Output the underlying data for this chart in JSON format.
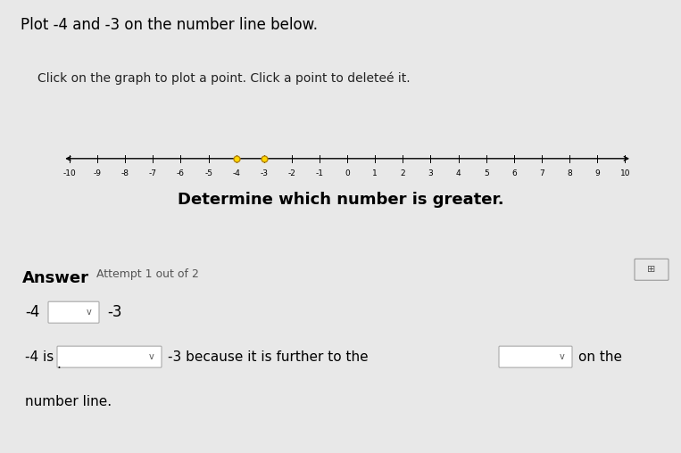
{
  "title": "Plot -4 and -3 on the number line below.",
  "subtitle": "Click on the graph to plot a point. Click a point to deleteé it.",
  "determine_text": "Determine which number is greater.",
  "answer_label": "Answer",
  "attempt_text": "Attempt 1 out of 2",
  "number_line_min": -10,
  "number_line_max": 10,
  "points": [
    -4,
    -3
  ],
  "point_fill_color": "#FFD700",
  "point_edge_color": "#B8860B",
  "point_size": 5,
  "line_color": "#000000",
  "background_top": "#e8e8e8",
  "background_bottom": "#d4d4d4",
  "answer_line1_left": "-4",
  "answer_line1_right": "-3",
  "answer_line2_left": "-4 is",
  "answer_line2_mid": "-3 because it is further to the",
  "answer_line2_right": "on the",
  "answer_line3": "number line.",
  "font_size_title": 12,
  "font_size_subtitle": 10,
  "font_size_determine": 13,
  "font_size_answer_bold": 12,
  "font_size_attempt": 9,
  "font_size_tick": 6.5,
  "font_size_body": 11,
  "fig_width": 7.63,
  "fig_height": 5.08,
  "dpi": 100
}
